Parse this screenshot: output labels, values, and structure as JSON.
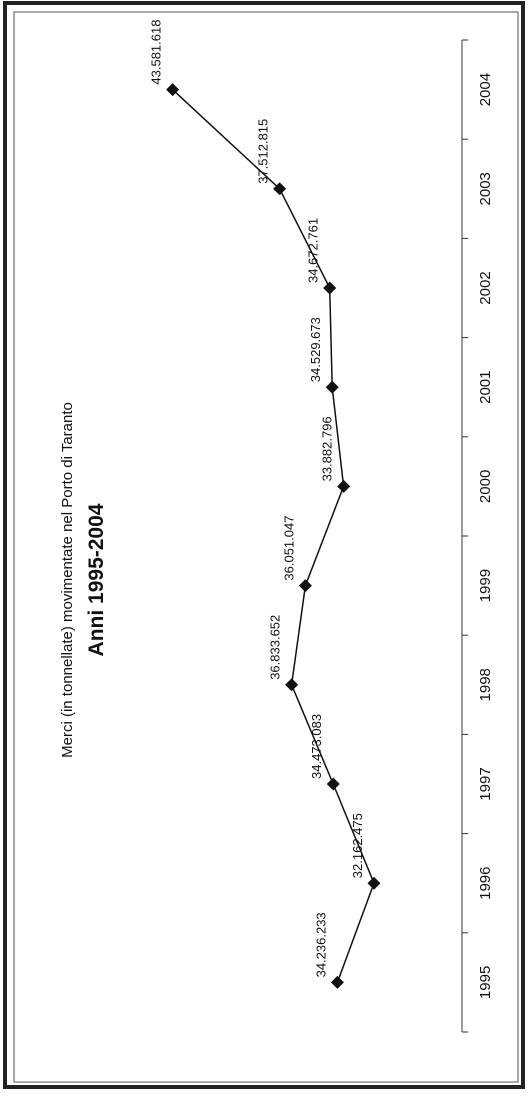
{
  "chart_data": {
    "type": "line",
    "title": "Merci (in tonnellate) movimentate nel Porto di Taranto",
    "subtitle": "Anni 1995-2004",
    "xlabel": "",
    "ylabel": "",
    "categories": [
      "1995",
      "1996",
      "1997",
      "1998",
      "1999",
      "2000",
      "2001",
      "2002",
      "2003",
      "2004"
    ],
    "values": [
      34236233,
      32162475,
      34473083,
      36833652,
      36051047,
      33882796,
      34529673,
      34672761,
      37512815,
      43581618
    ],
    "data_labels": [
      "34.236.233",
      "32.162.475",
      "34.473.083",
      "36.833.652",
      "36.051.047",
      "33.882.796",
      "34.529.673",
      "34.672.761",
      "37.512.815",
      "43.581.618"
    ],
    "ylim": [
      27000000,
      46000000
    ],
    "grid": false,
    "legend": "none",
    "orientation": "rotated-90-ccw",
    "line_color": "#111111",
    "marker": "diamond"
  }
}
